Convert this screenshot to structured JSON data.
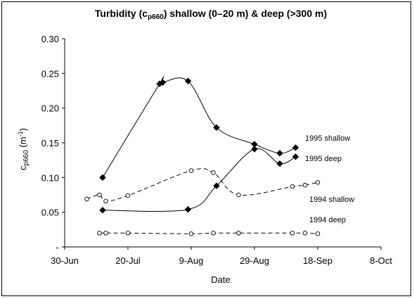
{
  "chart_data": {
    "type": "scatter",
    "title": {
      "prefix": "Turbidity (c",
      "subscript": "p660",
      "suffix": ") shallow (0–20 m) & deep (>300 m)"
    },
    "xlabel": "Date",
    "ylabel": {
      "main": "c",
      "subscript": "p660",
      "unit_prefix": " (m",
      "unit_sup": "-1",
      "unit_suffix": ")"
    },
    "x_ticks": [
      "30-Jun",
      "20-Jul",
      "9-Aug",
      "29-Aug",
      "18-Sep",
      "8-Oct"
    ],
    "x_tick_dates": [
      "06-30",
      "07-20",
      "08-09",
      "08-29",
      "09-18",
      "10-08"
    ],
    "xlim": [
      "06-30",
      "10-08"
    ],
    "y_ticks": [
      "-",
      "0.05",
      "0.10",
      "0.15",
      "0.20",
      "0.25",
      "0.30"
    ],
    "ylim": [
      0,
      0.3
    ],
    "grid": false,
    "series": [
      {
        "name": "1995 shallow",
        "style": "solid",
        "marker": "filled-diamond",
        "color": "#000000",
        "points": [
          {
            "x": "07-12",
            "y": 0.1
          },
          {
            "x": "07-30",
            "y": 0.235
          },
          {
            "x": "07-31",
            "y": 0.237
          },
          {
            "x": "08-08",
            "y": 0.239
          },
          {
            "x": "08-17",
            "y": 0.172
          },
          {
            "x": "08-29",
            "y": 0.148
          },
          {
            "x": "09-06",
            "y": 0.135
          },
          {
            "x": "09-11",
            "y": 0.143
          }
        ]
      },
      {
        "name": "1995 deep",
        "style": "solid",
        "marker": "filled-diamond",
        "color": "#000000",
        "points": [
          {
            "x": "07-12",
            "y": 0.053
          },
          {
            "x": "08-08",
            "y": 0.054
          },
          {
            "x": "08-17",
            "y": 0.088
          },
          {
            "x": "08-29",
            "y": 0.141
          },
          {
            "x": "09-06",
            "y": 0.12
          },
          {
            "x": "09-11",
            "y": 0.13
          }
        ]
      },
      {
        "name": "1994 shallow",
        "style": "dashed",
        "marker": "open-circle",
        "color": "#000000",
        "points": [
          {
            "x": "07-07",
            "y": 0.069
          },
          {
            "x": "07-11",
            "y": 0.075
          },
          {
            "x": "07-13",
            "y": 0.066
          },
          {
            "x": "07-20",
            "y": 0.074
          },
          {
            "x": "08-09",
            "y": 0.11
          },
          {
            "x": "08-16",
            "y": 0.107
          },
          {
            "x": "08-24",
            "y": 0.075
          },
          {
            "x": "09-10",
            "y": 0.087
          },
          {
            "x": "09-14",
            "y": 0.089
          },
          {
            "x": "09-18",
            "y": 0.093
          }
        ]
      },
      {
        "name": "1994 deep",
        "style": "dashed",
        "marker": "open-circle",
        "color": "#000000",
        "points": [
          {
            "x": "07-11",
            "y": 0.02
          },
          {
            "x": "07-13",
            "y": 0.02
          },
          {
            "x": "07-20",
            "y": 0.02
          },
          {
            "x": "08-09",
            "y": 0.019
          },
          {
            "x": "08-16",
            "y": 0.02
          },
          {
            "x": "08-24",
            "y": 0.02
          },
          {
            "x": "09-10",
            "y": 0.02
          },
          {
            "x": "09-14",
            "y": 0.02
          },
          {
            "x": "09-18",
            "y": 0.019
          }
        ]
      }
    ]
  }
}
